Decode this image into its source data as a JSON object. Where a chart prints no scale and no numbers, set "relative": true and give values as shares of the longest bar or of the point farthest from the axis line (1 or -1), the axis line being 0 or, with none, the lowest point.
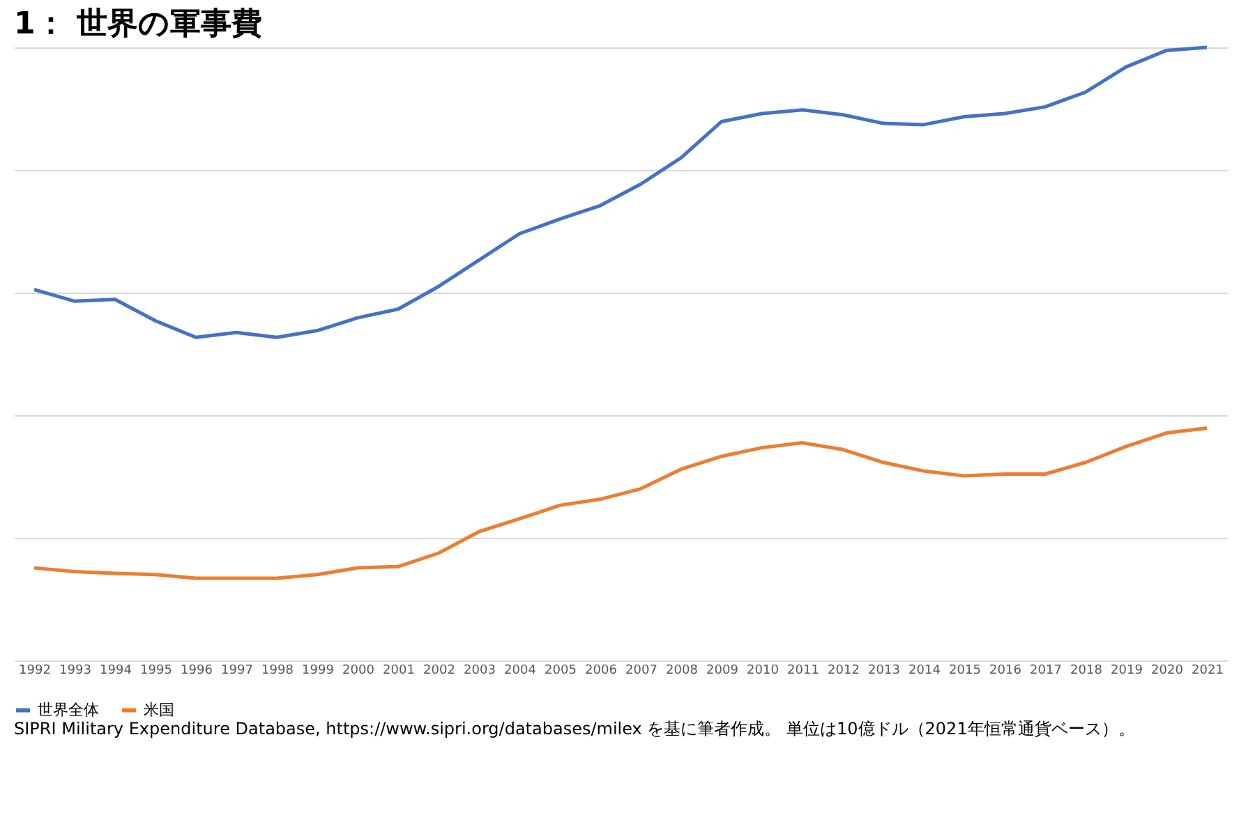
{
  "chart_data": {
    "type": "line",
    "title": "1： 世界の軍事費",
    "relative": true,
    "grid": "y",
    "legend": "bottom",
    "marker": "none",
    "line_style": "solid",
    "categories": [
      "1992",
      "1993",
      "1994",
      "1995",
      "1996",
      "1997",
      "1998",
      "1999",
      "2000",
      "2001",
      "2002",
      "2003",
      "2004",
      "2005",
      "2006",
      "2007",
      "2008",
      "2009",
      "2010",
      "2011",
      "2012",
      "2013",
      "2014",
      "2015",
      "2016",
      "2017",
      "2018",
      "2019",
      "2020",
      "2021"
    ],
    "series": [
      {
        "name": "世界全体",
        "color": "#4472c4",
        "values": [
          0.605,
          0.586,
          0.589,
          0.554,
          0.527,
          0.535,
          0.527,
          0.538,
          0.559,
          0.573,
          0.61,
          0.653,
          0.696,
          0.72,
          0.742,
          0.777,
          0.82,
          0.879,
          0.892,
          0.898,
          0.89,
          0.876,
          0.874,
          0.887,
          0.892,
          0.903,
          0.927,
          0.968,
          0.995,
          1
        ]
      },
      {
        "name": "米国",
        "color": "#ed7d31",
        "values": [
          0.151,
          0.145,
          0.142,
          0.14,
          0.134,
          0.134,
          0.134,
          0.14,
          0.151,
          0.153,
          0.175,
          0.21,
          0.231,
          0.253,
          0.263,
          0.28,
          0.312,
          0.333,
          0.347,
          0.355,
          0.344,
          0.323,
          0.309,
          0.301,
          0.304,
          0.304,
          0.323,
          0.349,
          0.371,
          0.379
        ]
      }
    ],
    "annotations": [
      "SIPRI Military Expenditure Database, https://www.sipri.org/databases/milex を基に筆者作成。 単位は10億ドル（2021年恒常通貨ベース）。"
    ]
  }
}
